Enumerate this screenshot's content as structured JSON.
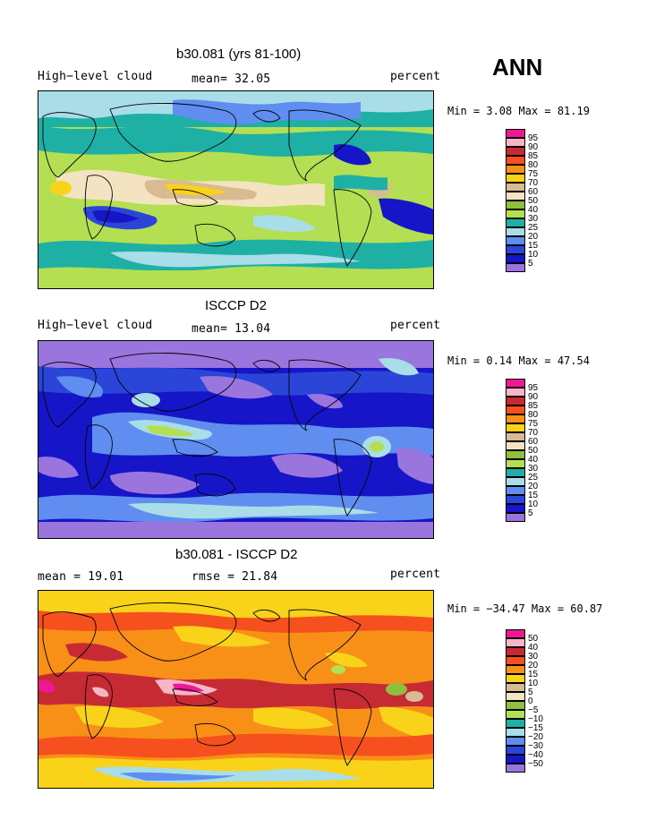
{
  "season": "ANN",
  "panels": [
    {
      "title": "b30.081 (yrs 81-100)",
      "left_label": "High−level cloud",
      "center_label": "mean=  32.05",
      "units": "percent",
      "minmax": "Min =   3.08 Max =  81.19",
      "legend_ticks": [
        "95",
        "90",
        "85",
        "80",
        "75",
        "70",
        "60",
        "50",
        "40",
        "30",
        "25",
        "20",
        "15",
        "10",
        "5"
      ]
    },
    {
      "title": "ISCCP D2",
      "left_label": "High−level cloud",
      "center_label": "mean=  13.04",
      "units": "percent",
      "minmax": "Min =   0.14 Max =  47.54",
      "legend_ticks": [
        "95",
        "90",
        "85",
        "80",
        "75",
        "70",
        "60",
        "50",
        "40",
        "30",
        "25",
        "20",
        "15",
        "10",
        "5"
      ]
    },
    {
      "title": "b30.081 - ISCCP D2",
      "left_label": "mean =  19.01",
      "center_label": "rmse =  21.84",
      "units": "percent",
      "minmax": "Min = −34.47 Max =  60.87",
      "legend_ticks": [
        "50",
        "40",
        "30",
        "20",
        "15",
        "10",
        "5",
        "0",
        "−5",
        "−10",
        "−15",
        "−20",
        "−30",
        "−40",
        "−50"
      ]
    }
  ],
  "colors": {
    "abs_scale": [
      "#ee1894",
      "#f7b6c8",
      "#c62a33",
      "#f5501e",
      "#f88f16",
      "#f8d31a",
      "#d8bb92",
      "#f3e3c0",
      "#8fbf3e",
      "#b5df52",
      "#1fb0a5",
      "#a9dde7",
      "#5f8ef0",
      "#2a45d8",
      "#1616c8",
      "#9b75de"
    ],
    "diff_scale": [
      "#ee1894",
      "#f7b6c8",
      "#c62a33",
      "#f5501e",
      "#f88f16",
      "#f8d31a",
      "#d8bb92",
      "#f3e3c0",
      "#8fbf3e",
      "#b5df52",
      "#1fb0a5",
      "#a9dde7",
      "#5f8ef0",
      "#2a45d8",
      "#1616c8",
      "#9b75de"
    ]
  }
}
